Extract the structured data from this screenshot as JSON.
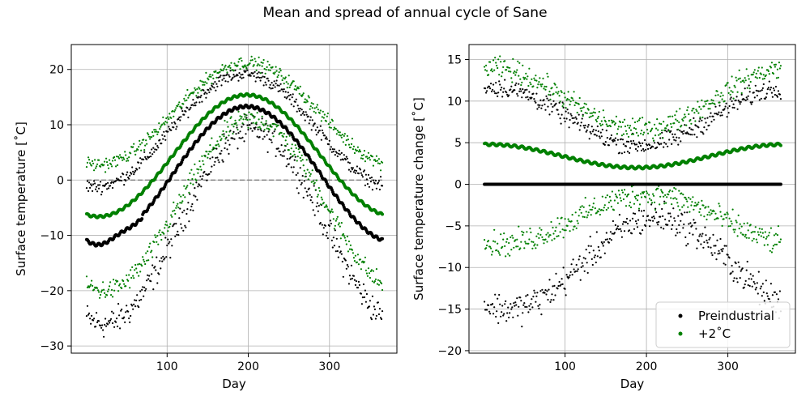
{
  "figure": {
    "suptitle": "Mean and spread of annual cycle of Sane"
  },
  "colors": {
    "preindustrial": "#000000",
    "warming": "#008000",
    "grid": "#b0b0b0",
    "zero_line": "#808080"
  },
  "chart_data": [
    {
      "type": "scatter",
      "xlabel": "Day",
      "ylabel": "Surface temperature [$^{\\circ}$C]",
      "ylabel_text": "Surface temperature [˚C]",
      "xlim": [
        -18,
        383
      ],
      "ylim": [
        -31.3,
        24.5
      ],
      "xticks": [
        100,
        200,
        300
      ],
      "yticks": [
        -30,
        -20,
        -10,
        0,
        10,
        20
      ],
      "grid": true,
      "reference_line": {
        "y": 0,
        "style": "dashed",
        "color": "gray"
      },
      "days": [
        1,
        365
      ],
      "series": [
        {
          "name": "Preindustrial",
          "role": "mean",
          "color": "black",
          "model": {
            "base": 1,
            "amp": 12.3,
            "peak_day": 200,
            "min_start": -11
          },
          "values_at": {
            "day1": -10.5,
            "day30": -11.3,
            "day100": -1.5,
            "day200": 13.3,
            "day300": 1.0,
            "day365": -10.3
          }
        },
        {
          "name": "Preindustrial",
          "role": "upper",
          "color": "black",
          "model": {
            "base": 9,
            "amp": 10.0,
            "noise": 1.0
          },
          "values_at": {
            "day1": 0.5,
            "day50": 1.5,
            "day200": 19.0,
            "day300": 8.0,
            "day365": 1.0
          }
        },
        {
          "name": "Preindustrial",
          "role": "lower",
          "color": "black",
          "model": {
            "base": -7.5,
            "amp": 16.5,
            "noise": 2.0
          },
          "values_at": {
            "day1": -24.5,
            "day50": -26.0,
            "day200": 9.5,
            "day300": -9.0,
            "day365": -22.0
          }
        },
        {
          "name": "+2˚C",
          "role": "mean",
          "color": "green",
          "model": {
            "base": 4.5,
            "amp": 11.0
          },
          "values_at": {
            "day1": -5.3,
            "day30": -6.3,
            "day100": 2.0,
            "day200": 15.5,
            "day300": 4.0,
            "day365": -5.2
          }
        },
        {
          "name": "+2˚C",
          "role": "upper",
          "color": "green",
          "model": {
            "base": 12,
            "amp": 9.0,
            "noise": 1.0
          },
          "values_at": {
            "day1": 3.5,
            "day50": 4.0,
            "day200": 21.0,
            "day300": 10.5,
            "day365": 3.5
          }
        },
        {
          "name": "+2˚C",
          "role": "lower",
          "color": "green",
          "model": {
            "base": -4.5,
            "amp": 15.0,
            "noise": 1.6
          },
          "values_at": {
            "day1": -18.0,
            "day50": -18.5,
            "day200": 11.5,
            "day300": -5.0,
            "day365": -17.5
          }
        }
      ]
    },
    {
      "type": "scatter",
      "xlabel": "Day",
      "ylabel_text": "Surface temperature change [˚C]",
      "xlim": [
        -18,
        383
      ],
      "ylim": [
        -20.3,
        16.8
      ],
      "xticks": [
        100,
        200,
        300
      ],
      "yticks": [
        -20,
        -15,
        -10,
        -5,
        0,
        5,
        10,
        15
      ],
      "grid": true,
      "legend": {
        "placement": "lower-right",
        "entries": [
          "Preindustrial",
          "+2˚C"
        ]
      },
      "series": [
        {
          "name": "Preindustrial",
          "role": "mean",
          "color": "black",
          "values_at": {
            "all": 0
          }
        },
        {
          "name": "Preindustrial",
          "role": "upper",
          "color": "black",
          "values_at": {
            "day1": 11.5,
            "day100": 8.0,
            "day180": 5.0,
            "day250": 6.0,
            "day365": 11.0
          }
        },
        {
          "name": "Preindustrial",
          "role": "lower",
          "color": "black",
          "values_at": {
            "day1": -14.0,
            "day50": -15.0,
            "day100": -10.0,
            "day200": -4.0,
            "day300": -9.0,
            "day365": -13.0
          }
        },
        {
          "name": "+2˚C",
          "role": "mean",
          "color": "green",
          "values_at": {
            "day1": 5.0,
            "day60": 4.0,
            "day170": 2.0,
            "day250": 2.5,
            "day365": 4.8
          }
        },
        {
          "name": "+2˚C",
          "role": "upper",
          "color": "green",
          "values_at": {
            "day1": 14.5,
            "day100": 11.0,
            "day200": 7.0,
            "day300": 10.0,
            "day365": 14.0
          }
        },
        {
          "name": "+2˚C",
          "role": "lower",
          "color": "green",
          "values_at": {
            "day1": -7.0,
            "day50": -6.5,
            "day100": -3.0,
            "day200": -1.5,
            "day300": -4.5,
            "day365": -7.5
          }
        }
      ]
    }
  ]
}
